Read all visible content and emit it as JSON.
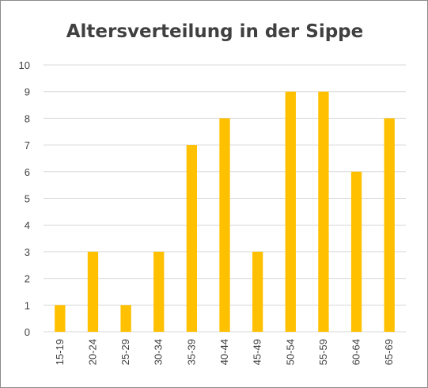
{
  "chart_data": {
    "type": "bar",
    "title": "Altersverteilung in der Sippe",
    "xlabel": "",
    "ylabel": "",
    "categories": [
      "15-19",
      "20-24",
      "25-29",
      "30-34",
      "35-39",
      "40-44",
      "45-49",
      "50-54",
      "55-59",
      "60-64",
      "65-69"
    ],
    "values": [
      1,
      3,
      1,
      3,
      7,
      8,
      3,
      9,
      9,
      6,
      8
    ],
    "ylim": [
      0,
      10
    ],
    "yticks": [
      "0",
      "1",
      "2",
      "3",
      "4",
      "5",
      "6",
      "7",
      "8",
      "9",
      "10"
    ],
    "grid": true,
    "legend": "none",
    "colors": {
      "bar": "#FFC000",
      "grid": "#D9D9D9",
      "text": "#404040"
    }
  }
}
